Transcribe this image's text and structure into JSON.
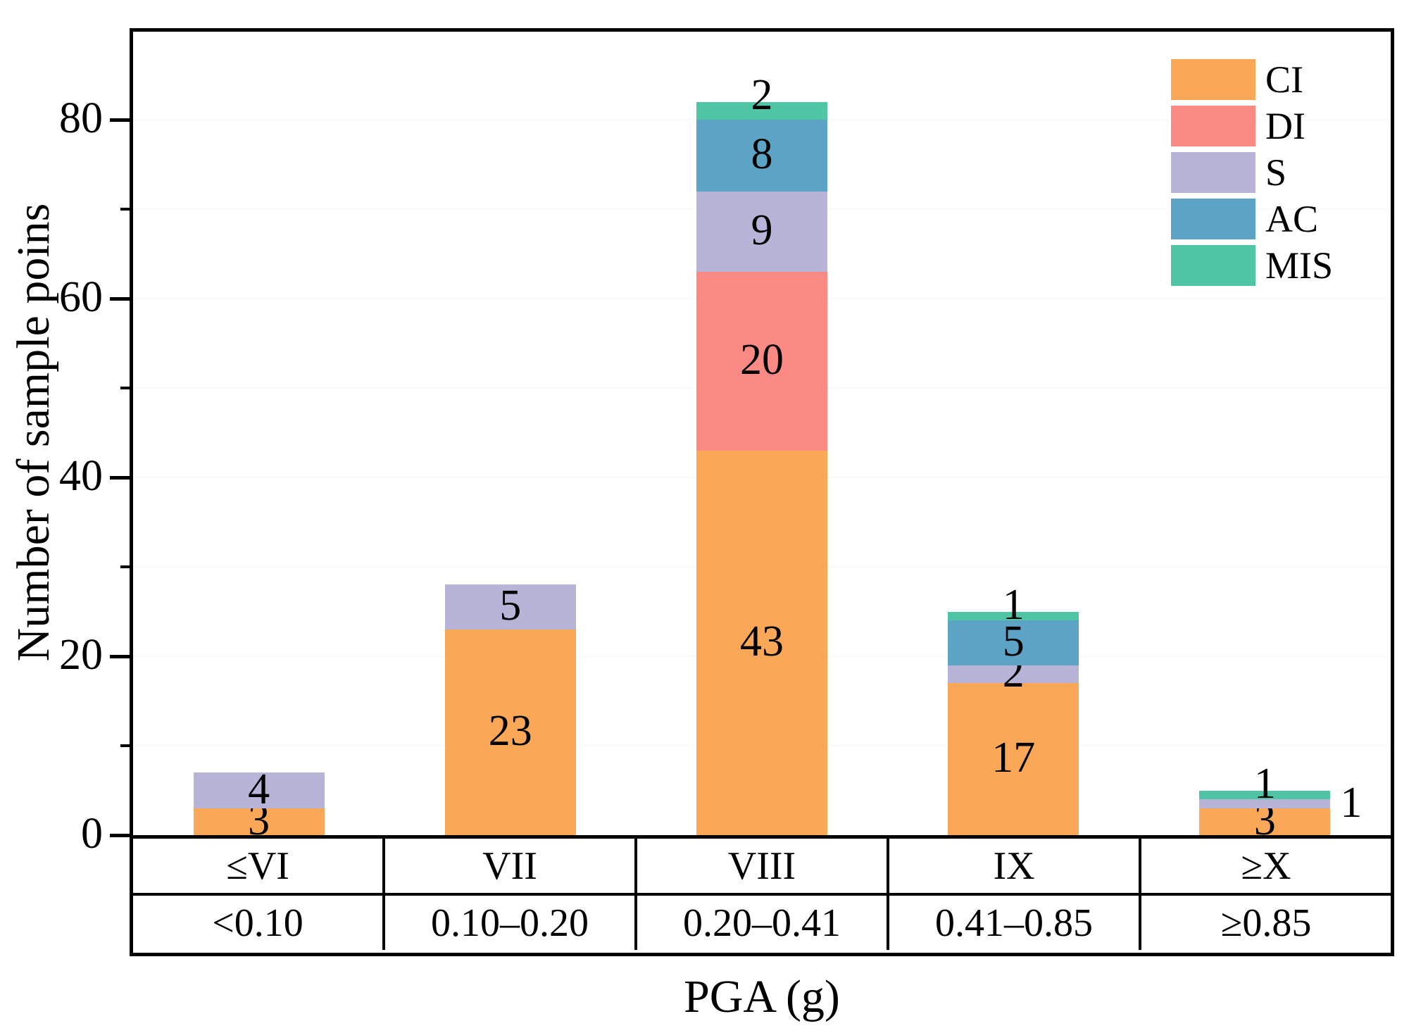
{
  "chart_data": {
    "type": "bar",
    "stacked": true,
    "title": "",
    "ylabel": "Number of sample poins",
    "xlabel": "PGA (g)",
    "ylim": [
      0,
      90
    ],
    "yticks_major": [
      0,
      20,
      40,
      60,
      80
    ],
    "yticks_minor": [
      10,
      30,
      50,
      70
    ],
    "grid": "faint-horizontal",
    "legend_position": "top-right-inside",
    "axis_color": "#000000",
    "background_color": "#ffffff",
    "series": [
      {
        "name": "CI",
        "color": "#FAA857",
        "values": [
          3,
          23,
          43,
          17,
          3
        ]
      },
      {
        "name": "DI",
        "color": "#FB8A84",
        "values": [
          0,
          0,
          20,
          0,
          0
        ]
      },
      {
        "name": "S",
        "color": "#B7B4D8",
        "values": [
          4,
          5,
          9,
          2,
          1
        ]
      },
      {
        "name": "AC",
        "color": "#5CA3C6",
        "values": [
          0,
          0,
          8,
          5,
          0
        ]
      },
      {
        "name": "MIS",
        "color": "#50C5A5",
        "values": [
          0,
          0,
          2,
          1,
          1
        ]
      }
    ],
    "categories": [
      "≤VI",
      "VII",
      "VIII",
      "IX",
      "≥X"
    ],
    "category_pga": [
      "<0.10",
      "0.10–0.20",
      "0.20–0.41",
      "0.41–0.85",
      "≥0.85"
    ],
    "bar_totals": [
      7,
      28,
      82,
      25,
      5
    ],
    "label_layout": {
      "default": "center",
      "overrides": [
        {
          "cat": 2,
          "series": "MIS",
          "pos": "top"
        },
        {
          "cat": 3,
          "series": "MIS",
          "pos": "top"
        },
        {
          "cat": 4,
          "series": "MIS",
          "pos": "top"
        },
        {
          "cat": 4,
          "series": "S",
          "pos": "right"
        }
      ]
    }
  }
}
